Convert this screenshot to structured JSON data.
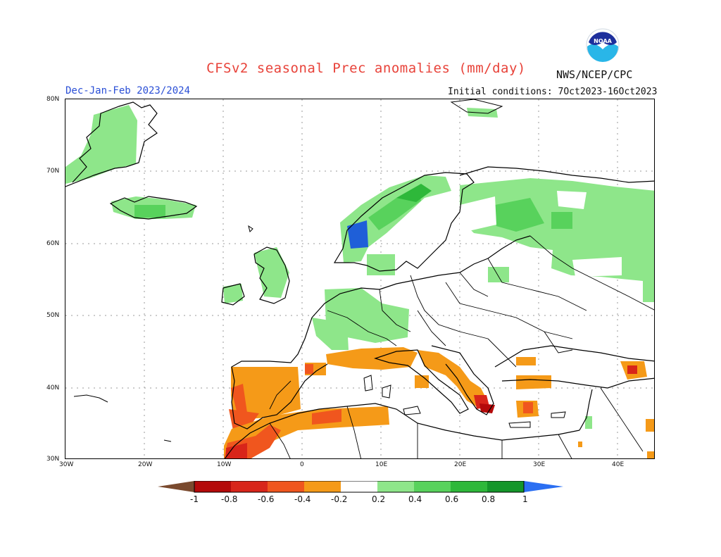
{
  "header": {
    "title": "CFSv2 seasonal Prec anomalies (mm/day)",
    "season": "Dec-Jan-Feb 2023/2024",
    "initial_conditions": "Initial conditions: 7Oct2023-16Oct2023",
    "org": "NWS/NCEP/CPC",
    "logo_text": "NOAA"
  },
  "axes": {
    "lat_labels": [
      "80N",
      "70N",
      "60N",
      "50N",
      "40N",
      "30N"
    ],
    "lon_labels": [
      "30W",
      "20W",
      "10W",
      "0",
      "10E",
      "20E",
      "30E",
      "40E"
    ]
  },
  "colorbar": {
    "labels": [
      "-1",
      "-0.8",
      "-0.6",
      "-0.4",
      "-0.2",
      "0.2",
      "0.4",
      "0.6",
      "0.8",
      "1"
    ],
    "colors": [
      "#7a4a2e",
      "#b40a0a",
      "#d8251a",
      "#f0561e",
      "#f59a18",
      "#ffffff",
      "#8ee68a",
      "#58d25c",
      "#2eb83a",
      "#14962a",
      "#2b6ff2"
    ]
  },
  "anomaly_legend_colors": {
    "strong_wet": "#1f5fd8",
    "wet_08": "#14962a",
    "wet_06": "#2eb83a",
    "wet_04": "#58d25c",
    "wet_02": "#8ee68a",
    "dry_02": "#f59a18",
    "dry_04": "#f0561e",
    "dry_06": "#d8251a",
    "dry_08": "#b40a0a"
  }
}
